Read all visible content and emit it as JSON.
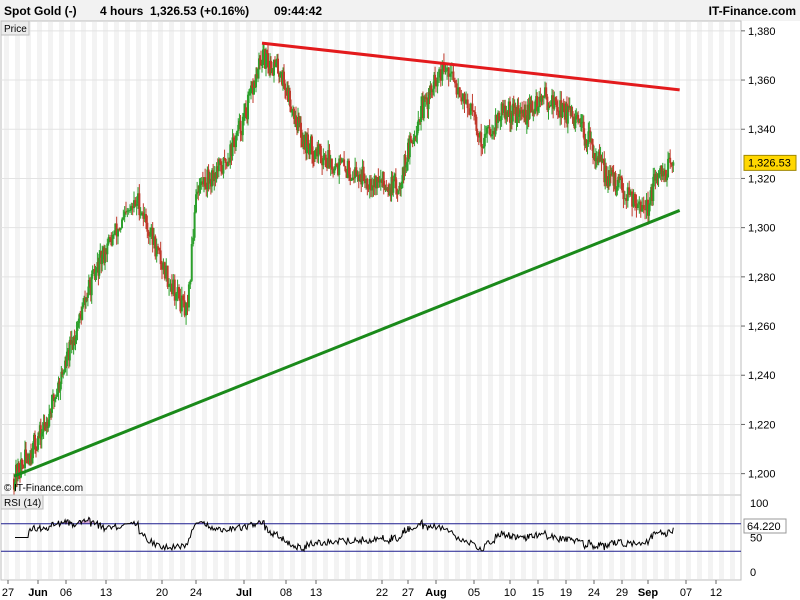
{
  "header": {
    "instrument": "Spot Gold (-)",
    "timeframe": "4 hours",
    "price_change": "1,326.53 (+0.16%)",
    "time": "09:44:42",
    "brand": "IT-Finance.com"
  },
  "main_panel": {
    "tab_label": "Price",
    "watermark": "© IT-Finance.com",
    "last_price_label": "1,326.53"
  },
  "rsi_panel": {
    "label": "RSI (14)",
    "last_value_label": "64.220"
  },
  "colors": {
    "bull": "#2ca02c",
    "bear": "#c0392b",
    "resistance": "#e31a1c",
    "support": "#1a8a1a",
    "rsi_line": "#000000",
    "rsi_band": "#1f1f8f",
    "price_tag": "#ffd700"
  },
  "chart_data": [
    {
      "type": "candlestick",
      "title": "Spot Gold (-) 4 hours",
      "x_tick_labels": [
        "27",
        "Jun",
        "06",
        "13",
        "20",
        "24",
        "Jul",
        "08",
        "13",
        "22",
        "27",
        "Aug",
        "05",
        "10",
        "15",
        "19",
        "24",
        "29",
        "Sep",
        "07",
        "12"
      ],
      "y_tick_labels": [
        "1,200",
        "1,220",
        "1,240",
        "1,260",
        "1,280",
        "1,300",
        "1,320",
        "1,340",
        "1,360",
        "1,380"
      ],
      "ylim": [
        1193,
        1384
      ],
      "last_price": 1326.53,
      "key_points": [
        {
          "date": "May 28",
          "close": 1198
        },
        {
          "date": "Jun 02",
          "close": 1218
        },
        {
          "date": "Jun 06",
          "close": 1245
        },
        {
          "date": "Jun 10",
          "close": 1275
        },
        {
          "date": "Jun 14",
          "close": 1297
        },
        {
          "date": "Jun 17",
          "close": 1311
        },
        {
          "date": "Jun 20",
          "close": 1285
        },
        {
          "date": "Jun 23",
          "close": 1264
        },
        {
          "date": "Jun 24",
          "close": 1316
        },
        {
          "date": "Jun 28",
          "close": 1325
        },
        {
          "date": "Jul 01",
          "close": 1344
        },
        {
          "date": "Jul 04",
          "close": 1369
        },
        {
          "date": "Jul 07",
          "close": 1364
        },
        {
          "date": "Jul 11",
          "close": 1335
        },
        {
          "date": "Jul 15",
          "close": 1327
        },
        {
          "date": "Jul 20",
          "close": 1320
        },
        {
          "date": "Jul 25",
          "close": 1316
        },
        {
          "date": "Jul 29",
          "close": 1345
        },
        {
          "date": "Aug 02",
          "close": 1364
        },
        {
          "date": "Aug 04",
          "close": 1353
        },
        {
          "date": "Aug 06",
          "close": 1335
        },
        {
          "date": "Aug 09",
          "close": 1347
        },
        {
          "date": "Aug 13",
          "close": 1346
        },
        {
          "date": "Aug 16",
          "close": 1353
        },
        {
          "date": "Aug 19",
          "close": 1347
        },
        {
          "date": "Aug 23",
          "close": 1336
        },
        {
          "date": "Aug 26",
          "close": 1322
        },
        {
          "date": "Aug 29",
          "close": 1316
        },
        {
          "date": "Sep 01",
          "close": 1308
        },
        {
          "date": "Sep 02",
          "close": 1318
        },
        {
          "date": "Sep 05",
          "close": 1326.53
        }
      ],
      "trendlines": [
        {
          "name": "resistance",
          "from": {
            "date": "Jul 04",
            "price": 1375
          },
          "to": {
            "date": "Sep 06",
            "price": 1356
          }
        },
        {
          "name": "support",
          "from": {
            "date": "May 28",
            "price": 1199
          },
          "to": {
            "date": "Sep 06",
            "price": 1307
          }
        }
      ]
    },
    {
      "type": "line",
      "title": "RSI (14)",
      "y_tick_labels": [
        "0",
        "50",
        "100"
      ],
      "ylim": [
        0,
        100
      ],
      "bands": [
        30,
        70
      ],
      "last_value": 64.22
    }
  ]
}
